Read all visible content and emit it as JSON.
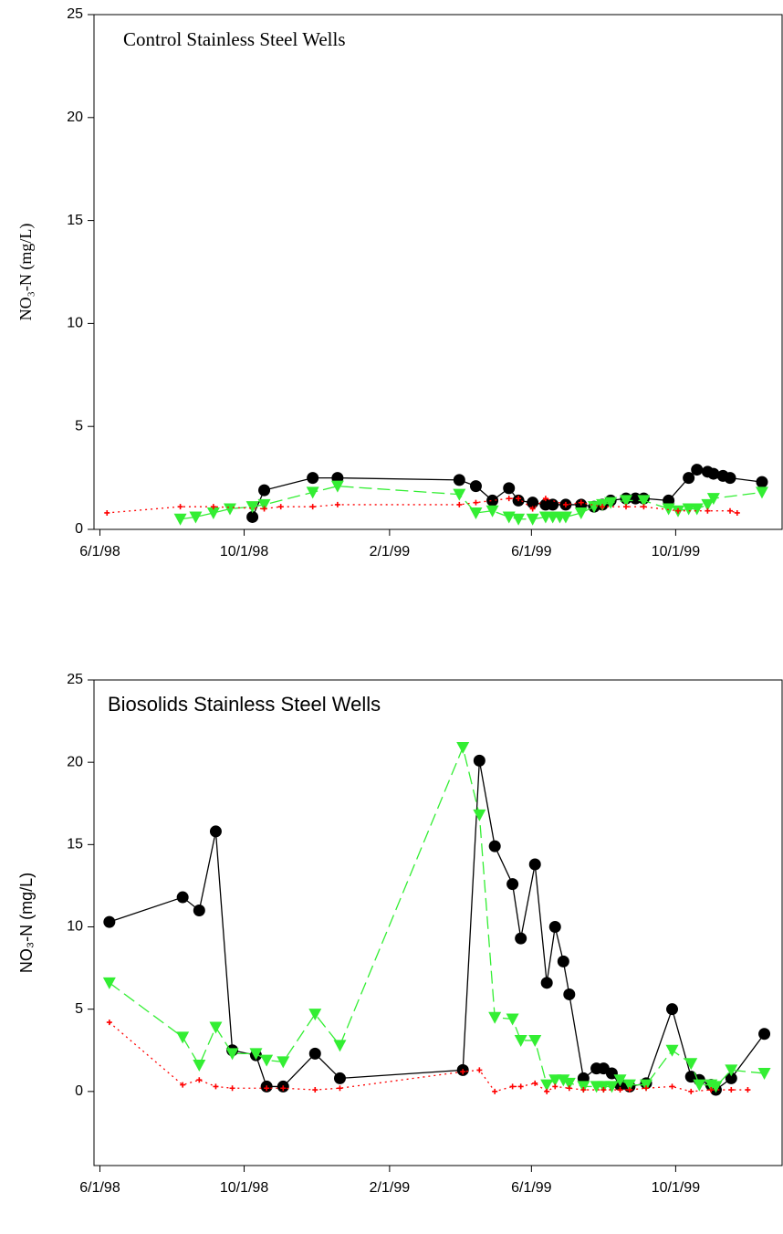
{
  "chart_data": [
    {
      "type": "line",
      "title": "Control Stainless Steel Wells",
      "ylabel": "NO₃-N (mg/L)",
      "xlim": [
        "5/27/98",
        "12/30/99"
      ],
      "xticks": [
        "6/1/98",
        "10/1/98",
        "2/1/99",
        "6/1/99",
        "10/1/99"
      ],
      "ylim": [
        0,
        25
      ],
      "yticks": [
        0,
        5,
        10,
        15,
        20,
        25
      ],
      "series": [
        {
          "color": "#000000",
          "marker": "circle",
          "linestyle": "solid",
          "x": [
            "10/8/98",
            "10/18/98",
            "11/28/98",
            "12/19/98",
            "4/1/99",
            "4/15/99",
            "4/29/99",
            "5/13/99",
            "5/21/99",
            "6/2/99",
            "6/13/99",
            "6/19/99",
            "6/30/99",
            "7/13/99",
            "7/24/99",
            "7/31/99",
            "8/7/99",
            "8/20/99",
            "8/28/99",
            "9/4/99",
            "9/25/99",
            "10/12/99",
            "10/19/99",
            "10/28/99",
            "11/2/99",
            "11/10/99",
            "11/16/99",
            "12/13/99"
          ],
          "values": [
            0.6,
            1.9,
            2.5,
            2.5,
            2.4,
            2.1,
            1.4,
            2.0,
            1.4,
            1.3,
            1.2,
            1.2,
            1.2,
            1.2,
            1.1,
            1.2,
            1.4,
            1.5,
            1.5,
            1.5,
            1.4,
            2.5,
            2.9,
            2.8,
            2.7,
            2.6,
            2.5,
            2.3
          ]
        },
        {
          "color": "#33ee33",
          "marker": "triangle-down",
          "linestyle": "dashed",
          "x": [
            "8/8/98",
            "8/21/98",
            "9/5/98",
            "9/19/98",
            "10/8/98",
            "10/18/98",
            "11/28/98",
            "12/19/98",
            "4/1/99",
            "4/15/99",
            "4/29/99",
            "5/13/99",
            "5/21/99",
            "6/2/99",
            "6/13/99",
            "6/19/99",
            "6/25/99",
            "6/30/99",
            "7/13/99",
            "7/24/99",
            "7/31/99",
            "8/7/99",
            "8/20/99",
            "9/4/99",
            "9/25/99",
            "10/3/99",
            "10/12/99",
            "10/19/99",
            "10/28/99",
            "11/2/99",
            "12/13/99"
          ],
          "values": [
            0.5,
            0.6,
            0.8,
            1.0,
            1.1,
            1.2,
            1.8,
            2.1,
            1.7,
            0.8,
            0.9,
            0.6,
            0.5,
            0.5,
            0.6,
            0.6,
            0.6,
            0.6,
            0.8,
            1.1,
            1.2,
            1.3,
            1.4,
            1.4,
            1.0,
            0.9,
            1.0,
            1.0,
            1.2,
            1.5,
            1.8
          ]
        },
        {
          "color": "#ff0000",
          "marker": "plus",
          "linestyle": "dotted",
          "x": [
            "6/7/98",
            "8/8/98",
            "9/5/98",
            "10/18/98",
            "11/1/98",
            "11/28/98",
            "12/19/98",
            "4/1/99",
            "4/15/99",
            "5/13/99",
            "5/21/99",
            "6/2/99",
            "6/13/99",
            "6/30/99",
            "7/13/99",
            "7/31/99",
            "8/20/99",
            "9/4/99",
            "10/3/99",
            "10/28/99",
            "11/16/99",
            "11/22/99"
          ],
          "values": [
            0.8,
            1.1,
            1.1,
            1.0,
            1.1,
            1.1,
            1.2,
            1.2,
            1.3,
            1.5,
            1.5,
            1.0,
            1.5,
            1.2,
            1.3,
            1.1,
            1.1,
            1.1,
            0.9,
            0.9,
            0.9,
            0.8
          ]
        }
      ]
    },
    {
      "type": "line",
      "title": "Biosolids Stainless Steel Wells",
      "ylabel": "NO₃-N (mg/L)",
      "xlim": [
        "5/27/98",
        "12/30/99"
      ],
      "xticks": [
        "6/1/98",
        "10/1/98",
        "2/1/99",
        "6/1/99",
        "10/1/99"
      ],
      "ylim": [
        -4.5,
        25
      ],
      "yticks": [
        0,
        5,
        10,
        15,
        20,
        25
      ],
      "series": [
        {
          "color": "#000000",
          "marker": "circle",
          "linestyle": "solid",
          "x": [
            "6/9/98",
            "8/10/98",
            "8/24/98",
            "9/7/98",
            "9/21/98",
            "10/11/98",
            "10/20/98",
            "11/3/98",
            "11/30/98",
            "12/21/98",
            "4/4/99",
            "4/18/99",
            "5/1/99",
            "5/16/99",
            "5/23/99",
            "6/4/99",
            "6/14/99",
            "6/21/99",
            "6/28/99",
            "7/3/99",
            "7/15/99",
            "7/26/99",
            "8/1/99",
            "8/8/99",
            "8/15/99",
            "8/23/99",
            "9/6/99",
            "9/28/99",
            "10/14/99",
            "10/21/99",
            "10/31/99",
            "11/4/99",
            "11/17/99",
            "12/15/99"
          ],
          "values": [
            10.3,
            11.8,
            11.0,
            15.8,
            2.5,
            2.2,
            0.3,
            0.3,
            2.3,
            0.8,
            1.3,
            20.1,
            14.9,
            12.6,
            9.3,
            13.8,
            6.6,
            10.0,
            7.9,
            5.9,
            0.8,
            1.4,
            1.4,
            1.1,
            0.4,
            0.3,
            0.5,
            5.0,
            0.9,
            0.7,
            0.4,
            0.1,
            0.8,
            3.5
          ]
        },
        {
          "color": "#33ee33",
          "marker": "triangle-down",
          "linestyle": "dashed",
          "x": [
            "6/9/98",
            "8/10/98",
            "8/24/98",
            "9/7/98",
            "9/21/98",
            "10/11/98",
            "10/20/98",
            "11/3/98",
            "11/30/98",
            "12/21/98",
            "4/4/99",
            "4/18/99",
            "5/1/99",
            "5/16/99",
            "5/23/99",
            "6/4/99",
            "6/14/99",
            "6/21/99",
            "6/28/99",
            "7/3/99",
            "7/15/99",
            "7/26/99",
            "8/1/99",
            "8/8/99",
            "8/15/99",
            "8/23/99",
            "9/6/99",
            "9/28/99",
            "10/14/99",
            "10/21/99",
            "10/31/99",
            "11/4/99",
            "11/17/99",
            "12/15/99"
          ],
          "values": [
            6.6,
            3.3,
            1.6,
            3.9,
            2.3,
            2.3,
            1.9,
            1.8,
            4.7,
            2.8,
            20.9,
            16.8,
            4.5,
            4.4,
            3.1,
            3.1,
            0.4,
            0.7,
            0.7,
            0.5,
            0.3,
            0.3,
            0.3,
            0.3,
            0.7,
            0.4,
            0.4,
            2.5,
            1.7,
            0.4,
            0.4,
            0.3,
            1.3,
            1.1
          ]
        },
        {
          "color": "#ff0000",
          "marker": "plus",
          "linestyle": "dotted",
          "x": [
            "6/9/98",
            "8/10/98",
            "8/24/98",
            "9/7/98",
            "9/21/98",
            "10/20/98",
            "11/3/98",
            "11/30/98",
            "12/21/98",
            "4/4/99",
            "4/18/99",
            "5/1/99",
            "5/16/99",
            "5/23/99",
            "6/4/99",
            "6/14/99",
            "6/21/99",
            "7/3/99",
            "7/15/99",
            "8/1/99",
            "8/15/99",
            "8/23/99",
            "9/6/99",
            "9/28/99",
            "10/14/99",
            "10/31/99",
            "11/17/99",
            "12/1/99"
          ],
          "values": [
            4.2,
            0.4,
            0.7,
            0.3,
            0.2,
            0.2,
            0.2,
            0.1,
            0.2,
            1.2,
            1.3,
            0.0,
            0.3,
            0.3,
            0.5,
            0.0,
            0.3,
            0.2,
            0.1,
            0.1,
            0.1,
            0.1,
            0.2,
            0.3,
            0.0,
            0.1,
            0.1,
            0.1
          ]
        }
      ]
    }
  ]
}
